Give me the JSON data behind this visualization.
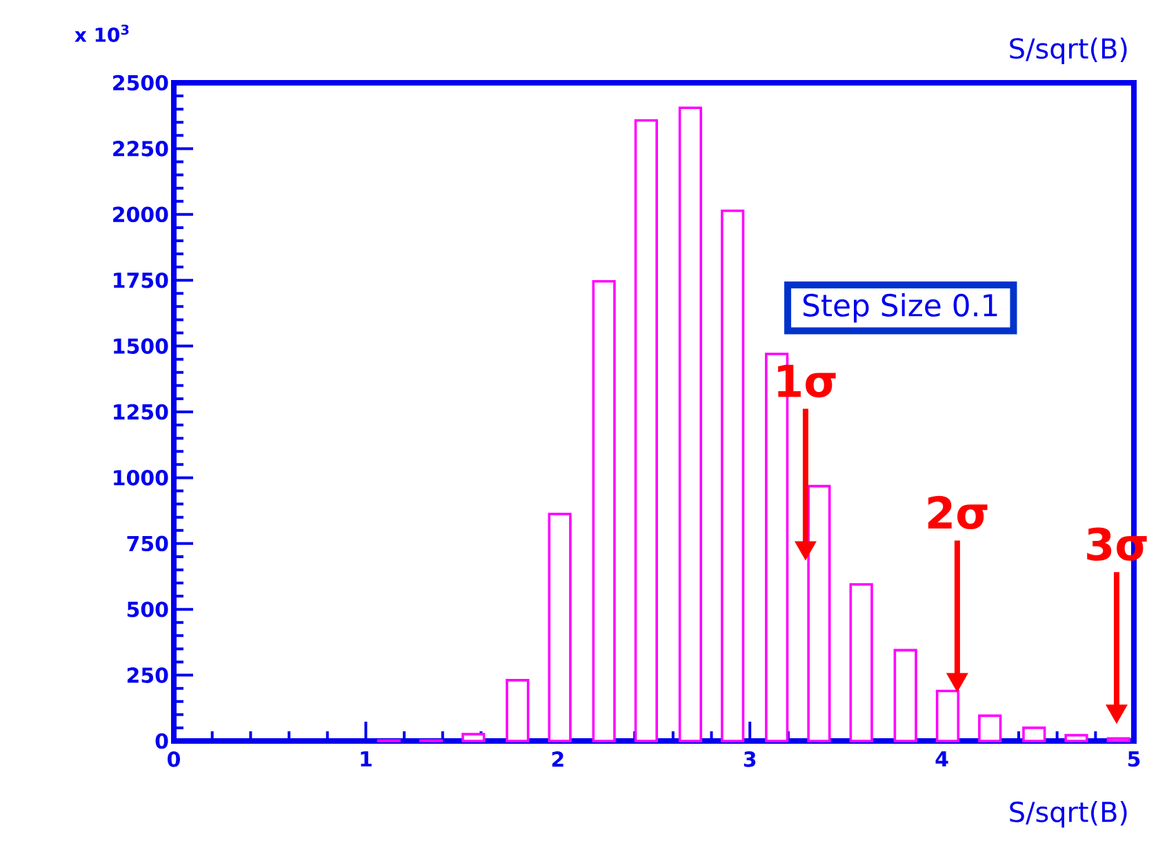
{
  "chart_data": {
    "type": "bar",
    "title": "S/sqrt(B)",
    "xlabel": "S/sqrt(B)",
    "ylabel": "x 10$^{3}$",
    "x": [
      1.12,
      1.34,
      1.56,
      1.79,
      2.01,
      2.24,
      2.46,
      2.69,
      2.91,
      3.14,
      3.36,
      3.58,
      3.81,
      4.03,
      4.25,
      4.48,
      4.7,
      4.92
    ],
    "series": [
      {
        "color": "#ff00ff",
        "values": [
          2,
          2,
          26,
          231,
          862,
          1746,
          2357,
          2405,
          2014,
          1470,
          968,
          595,
          345,
          190,
          96,
          50,
          22,
          10
        ]
      }
    ],
    "xlim": [
      0,
      5
    ],
    "ylim": [
      0,
      2500
    ],
    "xticks": [
      0,
      1,
      2,
      3,
      4,
      5
    ],
    "yticks": [
      0,
      250,
      500,
      750,
      1000,
      1250,
      1500,
      1750,
      2000,
      2250,
      2500
    ],
    "annotations": [
      "Step Size 0.1",
      "1σ",
      "2σ",
      "3σ"
    ]
  }
}
